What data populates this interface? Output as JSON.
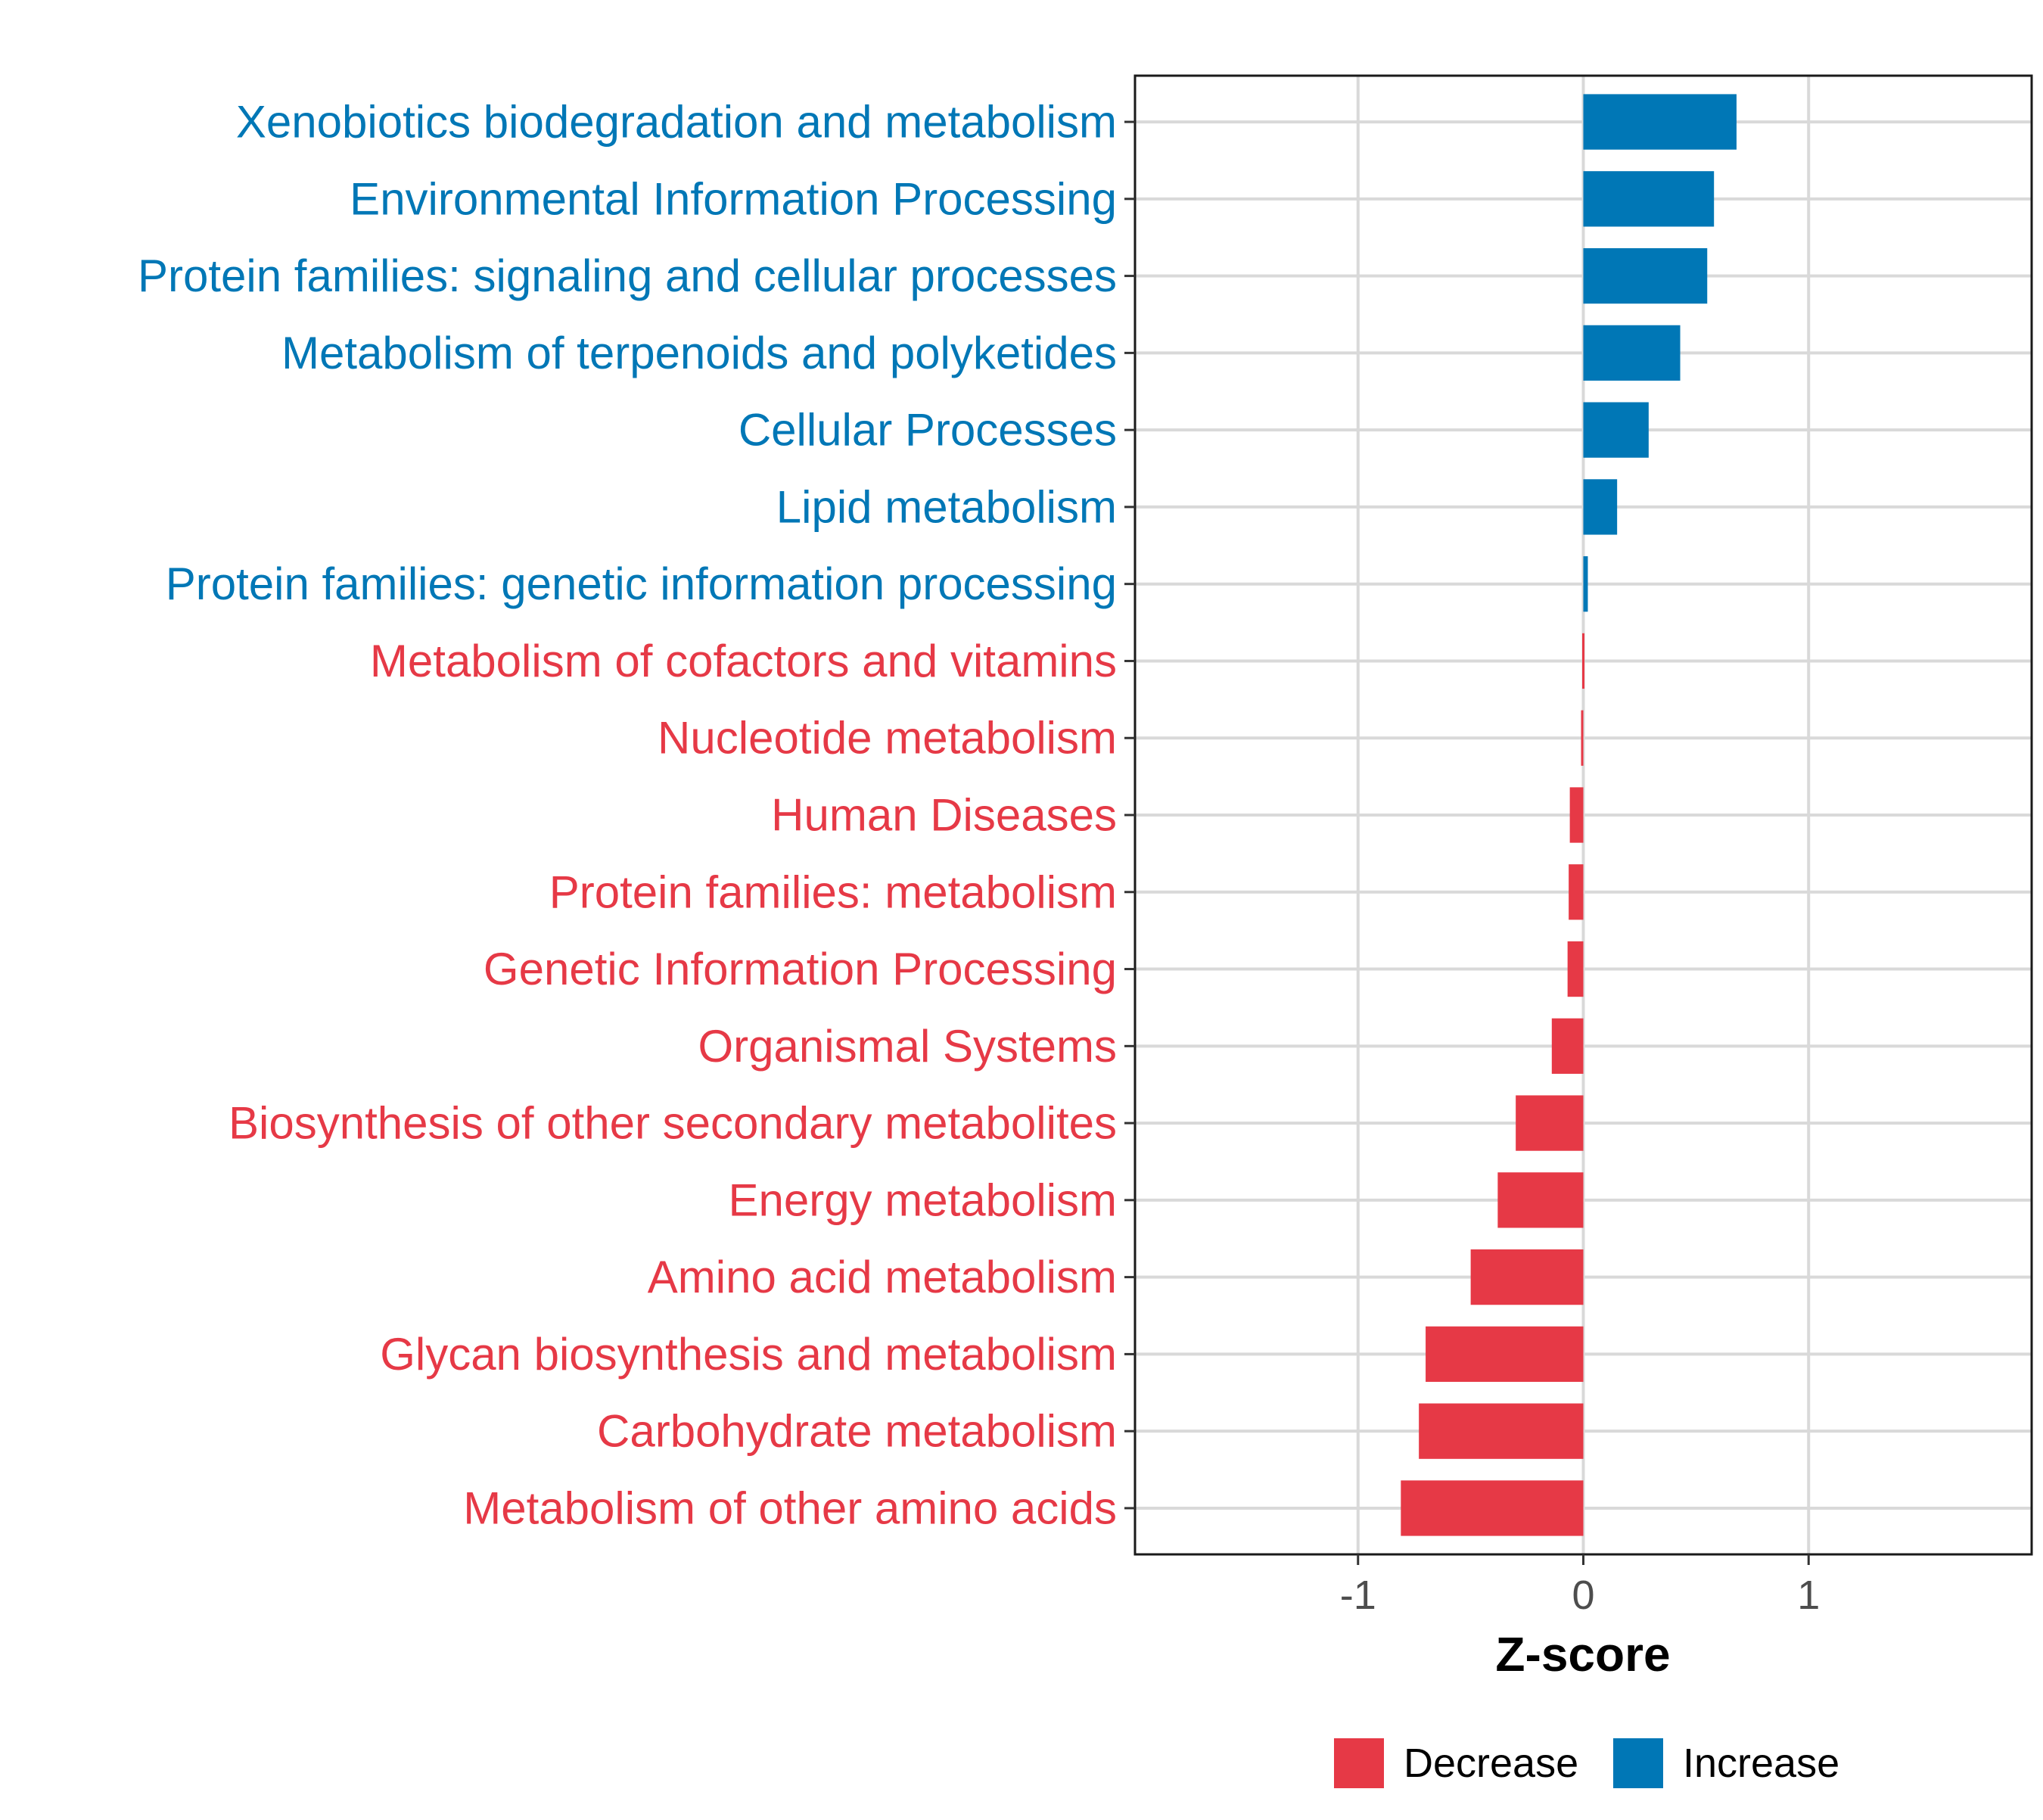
{
  "chart_data": {
    "type": "bar",
    "orientation": "horizontal",
    "categories": [
      "Xenobiotics biodegradation and metabolism",
      "Environmental Information Processing",
      "Protein families: signaling and cellular processes",
      "Metabolism of terpenoids and polyketides",
      "Cellular Processes",
      "Lipid metabolism",
      "Protein families: genetic information processing",
      "Metabolism of cofactors and vitamins",
      "Nucleotide metabolism",
      "Human Diseases",
      "Protein families: metabolism",
      "Genetic Information Processing",
      "Organismal Systems",
      "Biosynthesis of other secondary metabolites",
      "Energy metabolism",
      "Amino acid metabolism",
      "Glycan biosynthesis and metabolism",
      "Carbohydrate metabolism",
      "Metabolism of other amino acids"
    ],
    "values": [
      0.68,
      0.58,
      0.55,
      0.43,
      0.29,
      0.15,
      0.02,
      -0.005,
      -0.01,
      -0.06,
      -0.065,
      -0.07,
      -0.14,
      -0.3,
      -0.38,
      -0.5,
      -0.7,
      -0.73,
      -0.81
    ],
    "groups": [
      "Increase",
      "Increase",
      "Increase",
      "Increase",
      "Increase",
      "Increase",
      "Increase",
      "Decrease",
      "Decrease",
      "Decrease",
      "Decrease",
      "Decrease",
      "Decrease",
      "Decrease",
      "Decrease",
      "Decrease",
      "Decrease",
      "Decrease",
      "Decrease"
    ],
    "xlabel": "Z-score",
    "ylabel": "",
    "xlim": [
      -1.99,
      1.99
    ],
    "xticks": [
      -1,
      0,
      1
    ],
    "xtick_labels": [
      "-1",
      "0",
      "1"
    ],
    "grid": true,
    "legend": {
      "position": "bottom",
      "entries": [
        {
          "label": "Decrease",
          "color": "#E63946"
        },
        {
          "label": "Increase",
          "color": "#0077B6"
        }
      ]
    },
    "colors": {
      "Decrease": "#E63946",
      "Increase": "#0077B6"
    }
  }
}
